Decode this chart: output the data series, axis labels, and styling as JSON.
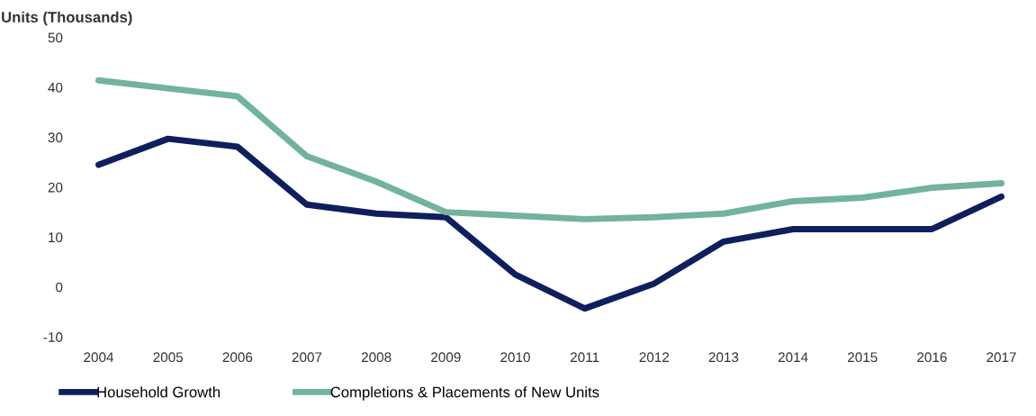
{
  "chart_data": {
    "type": "line",
    "ylabel": "Units (Thousands)",
    "categories": [
      "2004",
      "2005",
      "2006",
      "2007",
      "2008",
      "2009",
      "2010",
      "2011",
      "2012",
      "2013",
      "2014",
      "2015",
      "2016",
      "2017"
    ],
    "series": [
      {
        "name": "Household Growth",
        "color": "#0d1f5c",
        "values": [
          24.5,
          29.7,
          28.1,
          16.5,
          14.7,
          14,
          2.5,
          -4.3,
          0.7,
          9.1,
          11.6,
          11.6,
          11.6,
          18.1
        ]
      },
      {
        "name": "Completions & Placements of New Units",
        "color": "#72b39c",
        "values": [
          41.4,
          39.8,
          38.2,
          26.2,
          21.1,
          15,
          14.3,
          13.6,
          14,
          14.7,
          17.2,
          17.9,
          19.9,
          20.8
        ]
      }
    ],
    "ylim": [
      -10,
      50
    ],
    "yticks": [
      -10,
      0,
      10,
      20,
      30,
      40,
      50
    ],
    "grid": false,
    "legend": "bottom left",
    "marker": "none",
    "line_style": "solid"
  }
}
